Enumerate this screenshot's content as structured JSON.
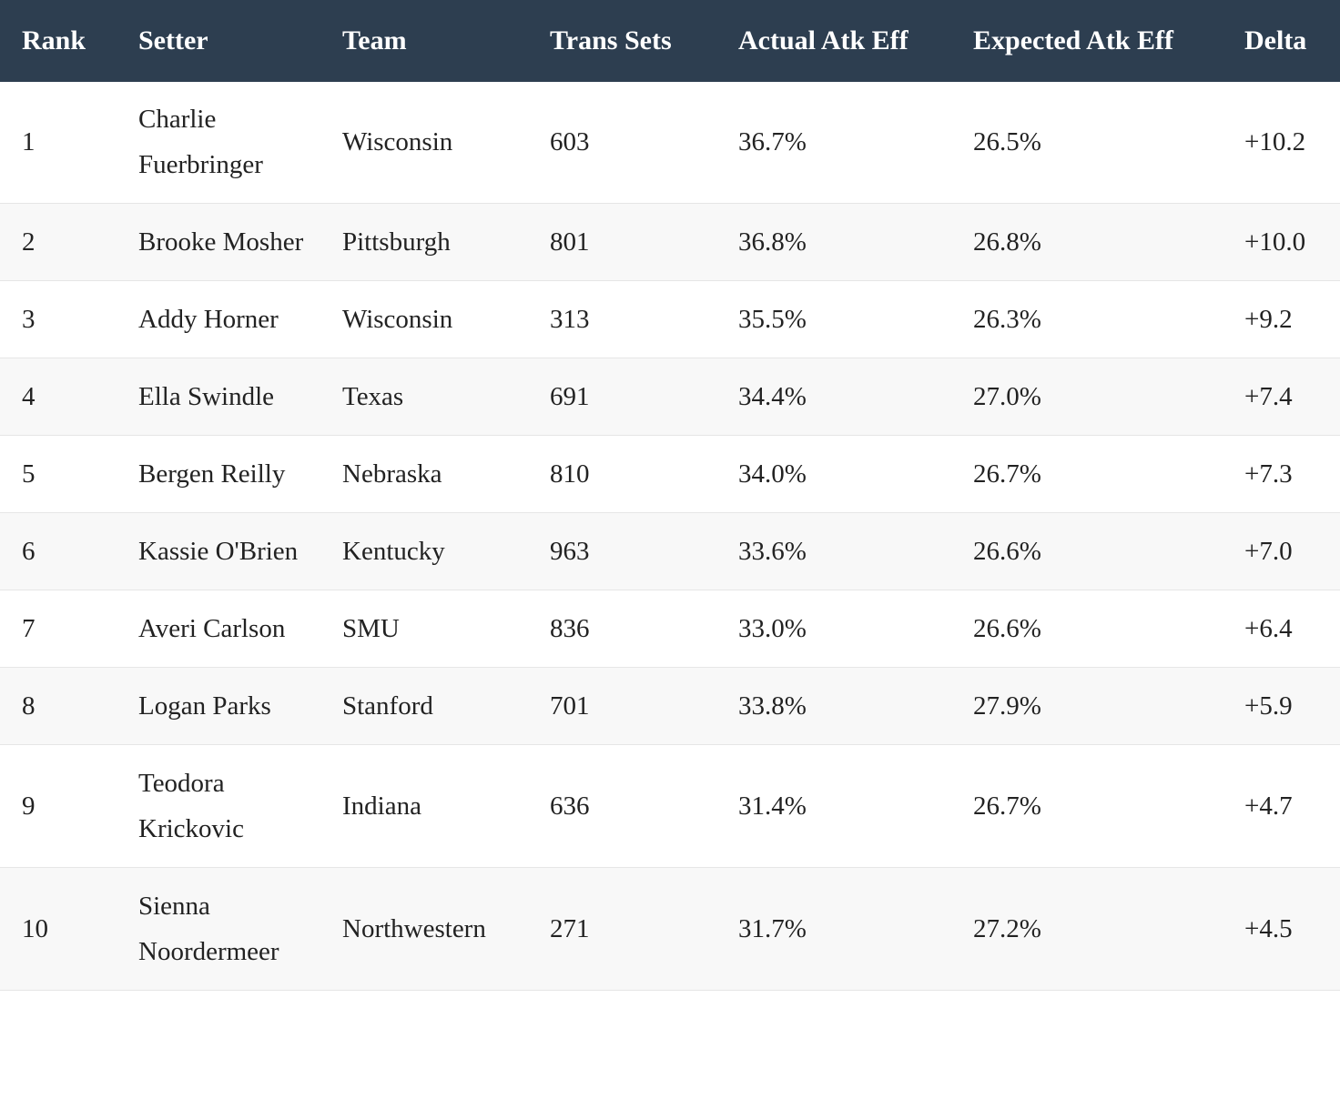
{
  "table": {
    "columns": [
      "Rank",
      "Setter",
      "Team",
      "Trans Sets",
      "Actual Atk Eff",
      "Expected Atk Eff",
      "Delta"
    ],
    "rows": [
      [
        "1",
        "Charlie Fuerbringer",
        "Wisconsin",
        "603",
        "36.7%",
        "26.5%",
        "+10.2"
      ],
      [
        "2",
        "Brooke Mosher",
        "Pittsburgh",
        "801",
        "36.8%",
        "26.8%",
        "+10.0"
      ],
      [
        "3",
        "Addy Horner",
        "Wisconsin",
        "313",
        "35.5%",
        "26.3%",
        "+9.2"
      ],
      [
        "4",
        "Ella Swindle",
        "Texas",
        "691",
        "34.4%",
        "27.0%",
        "+7.4"
      ],
      [
        "5",
        "Bergen Reilly",
        "Nebraska",
        "810",
        "34.0%",
        "26.7%",
        "+7.3"
      ],
      [
        "6",
        "Kassie O'Brien",
        "Kentucky",
        "963",
        "33.6%",
        "26.6%",
        "+7.0"
      ],
      [
        "7",
        "Averi Carlson",
        "SMU",
        "836",
        "33.0%",
        "26.6%",
        "+6.4"
      ],
      [
        "8",
        "Logan Parks",
        "Stanford",
        "701",
        "33.8%",
        "27.9%",
        "+5.9"
      ],
      [
        "9",
        "Teodora Krickovic",
        "Indiana",
        "636",
        "31.4%",
        "26.7%",
        "+4.7"
      ],
      [
        "10",
        "Sienna Noordermeer",
        "Northwestern",
        "271",
        "31.7%",
        "27.2%",
        "+4.5"
      ]
    ]
  }
}
